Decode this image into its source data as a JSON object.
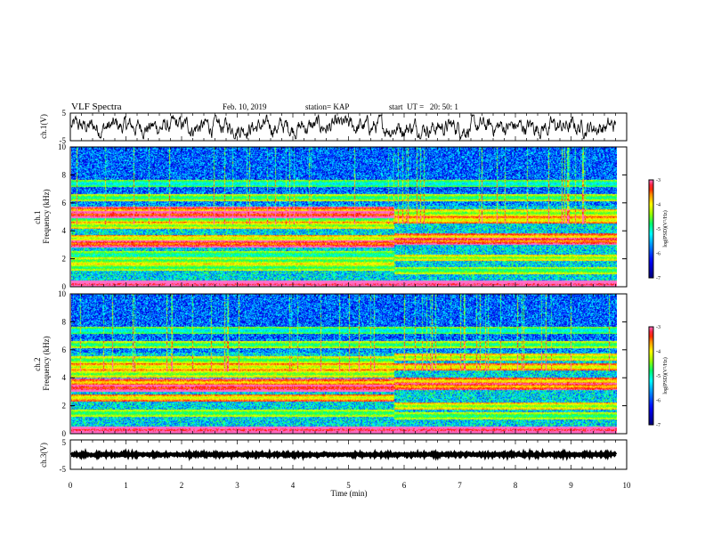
{
  "header": {
    "title": "VLF Spectra",
    "date": "Feb. 10, 2019",
    "station": "station= KAP",
    "start": "start  UT =   20: 50: 1"
  },
  "colors": {
    "spectrum": [
      "#00008b",
      "#0000ff",
      "#00aaff",
      "#00ffff",
      "#00ff88",
      "#88ff00",
      "#ffff00",
      "#ff8800",
      "#ff0000",
      "#ff66cc"
    ]
  },
  "chart_data": [
    {
      "type": "line",
      "name": "ch1-waveform",
      "ylabel": "ch.1(V)",
      "ylim": [
        -5,
        5
      ],
      "yticks": [
        "5",
        "-5"
      ],
      "xlim": [
        0,
        10
      ],
      "x_end": 9.8,
      "level": 0,
      "noise_amplitude": 2.2
    },
    {
      "type": "heatmap",
      "name": "ch1-spectrogram",
      "ylabel": "ch.1\nFrequency (kHz)",
      "ylim": [
        0,
        10
      ],
      "yticks": [
        "0",
        "2",
        "4",
        "6",
        "8",
        "10"
      ],
      "xlim": [
        0,
        10
      ],
      "x_end": 9.8,
      "colorbar": {
        "label": "log(PSD)(V²/Hz)",
        "range": [
          -7,
          -3
        ],
        "ticks": [
          "-3",
          "-4",
          "-5",
          "-6",
          "-7"
        ]
      },
      "transition_min": 5.8,
      "bands_before": [
        {
          "f": 0.2,
          "v": -3.2
        },
        {
          "f": 1.4,
          "v": -4.9
        },
        {
          "f": 1.9,
          "v": -4.8
        },
        {
          "f": 2.3,
          "v": -5.3
        },
        {
          "f": 3.1,
          "v": -3.7
        },
        {
          "f": 3.5,
          "v": -4.4
        },
        {
          "f": 4.4,
          "v": -4.6
        },
        {
          "f": 4.9,
          "v": -5.0
        },
        {
          "f": 5.2,
          "v": -3.6
        },
        {
          "f": 5.5,
          "v": -3.9
        },
        {
          "f": 6.4,
          "v": -5.0
        },
        {
          "f": 7.4,
          "v": -5.4
        }
      ],
      "bands_after": [
        {
          "f": 0.2,
          "v": -3.2
        },
        {
          "f": 1.2,
          "v": -5.0
        },
        {
          "f": 2.1,
          "v": -4.6
        },
        {
          "f": 3.3,
          "v": -3.8
        },
        {
          "f": 3.6,
          "v": -4.1
        },
        {
          "f": 4.8,
          "v": -4.3
        },
        {
          "f": 5.3,
          "v": -4.7
        },
        {
          "f": 6.4,
          "v": -5.0
        },
        {
          "f": 7.4,
          "v": -5.4
        }
      ]
    },
    {
      "type": "heatmap",
      "name": "ch2-spectrogram",
      "ylabel": "ch.2\nFrequency (kHz)",
      "ylim": [
        0,
        10
      ],
      "yticks": [
        "0",
        "2",
        "4",
        "6",
        "8",
        "10"
      ],
      "xlim": [
        0,
        10
      ],
      "x_end": 9.8,
      "colorbar": {
        "label": "log(PSD)(V²/Hz)",
        "range": [
          -7,
          -3
        ],
        "ticks": [
          "-3",
          "-4",
          "-5",
          "-6",
          "-7"
        ]
      },
      "transition_min": 5.8,
      "bands_before": [
        {
          "f": 0.3,
          "v": -3.3
        },
        {
          "f": 1.5,
          "v": -5.0
        },
        {
          "f": 2.6,
          "v": -4.3
        },
        {
          "f": 3.3,
          "v": -3.5
        },
        {
          "f": 3.7,
          "v": -4.0
        },
        {
          "f": 4.3,
          "v": -4.7
        },
        {
          "f": 4.8,
          "v": -4.4
        },
        {
          "f": 5.3,
          "v": -4.9
        },
        {
          "f": 6.4,
          "v": -5.0
        },
        {
          "f": 7.4,
          "v": -5.4
        }
      ],
      "bands_after": [
        {
          "f": 0.3,
          "v": -3.3
        },
        {
          "f": 1.3,
          "v": -5.0
        },
        {
          "f": 2.0,
          "v": -4.6
        },
        {
          "f": 3.4,
          "v": -3.9
        },
        {
          "f": 3.8,
          "v": -4.1
        },
        {
          "f": 4.8,
          "v": -4.3
        },
        {
          "f": 5.5,
          "v": -4.6
        },
        {
          "f": 6.4,
          "v": -5.0
        },
        {
          "f": 7.4,
          "v": -5.4
        }
      ]
    },
    {
      "type": "line",
      "name": "ch3-waveform",
      "ylabel": "ch.3(V)",
      "ylim": [
        -5,
        5
      ],
      "yticks": [
        "5",
        "-5"
      ],
      "xlim": [
        0,
        10
      ],
      "x_end": 9.8,
      "level": 0,
      "noise_amplitude": 0.3
    }
  ],
  "xaxis": {
    "label": "Time (min)",
    "ticks": [
      "0",
      "1",
      "2",
      "3",
      "4",
      "5",
      "6",
      "7",
      "8",
      "9",
      "10"
    ]
  }
}
